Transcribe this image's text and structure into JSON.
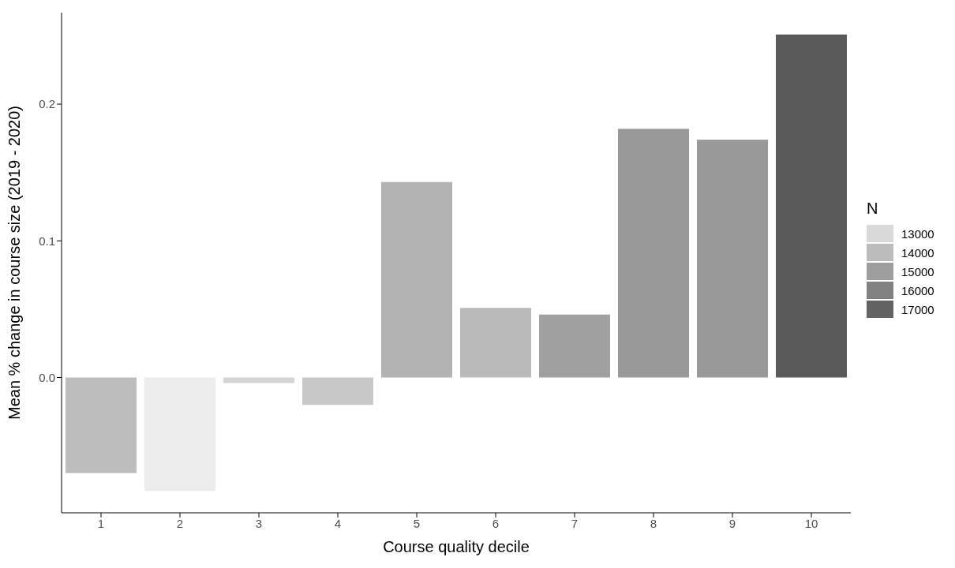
{
  "chart_data": {
    "type": "bar",
    "xlabel": "Course quality decile",
    "ylabel": "Mean % change in course size (2019 - 2020)",
    "categories": [
      "1",
      "2",
      "3",
      "4",
      "5",
      "6",
      "7",
      "8",
      "9",
      "10"
    ],
    "values": [
      -0.07,
      -0.083,
      -0.004,
      -0.02,
      0.143,
      0.051,
      0.046,
      0.182,
      0.174,
      0.251
    ],
    "colors": [
      "#bdbdbd",
      "#ececec",
      "#d4d4d4",
      "#c8c8c8",
      "#b3b3b3",
      "#bababa",
      "#a0a0a0",
      "#999999",
      "#999999",
      "#5a5a5a"
    ],
    "ylim": [
      -0.099,
      0.267
    ],
    "yticks": [
      {
        "value": 0,
        "label": "0.0"
      },
      {
        "value": 0.1,
        "label": "0.1"
      },
      {
        "value": 0.2,
        "label": "0.2"
      }
    ],
    "clabel": "N",
    "cticks": [
      13000,
      14000,
      15000,
      16000,
      17000
    ],
    "grid": false
  }
}
